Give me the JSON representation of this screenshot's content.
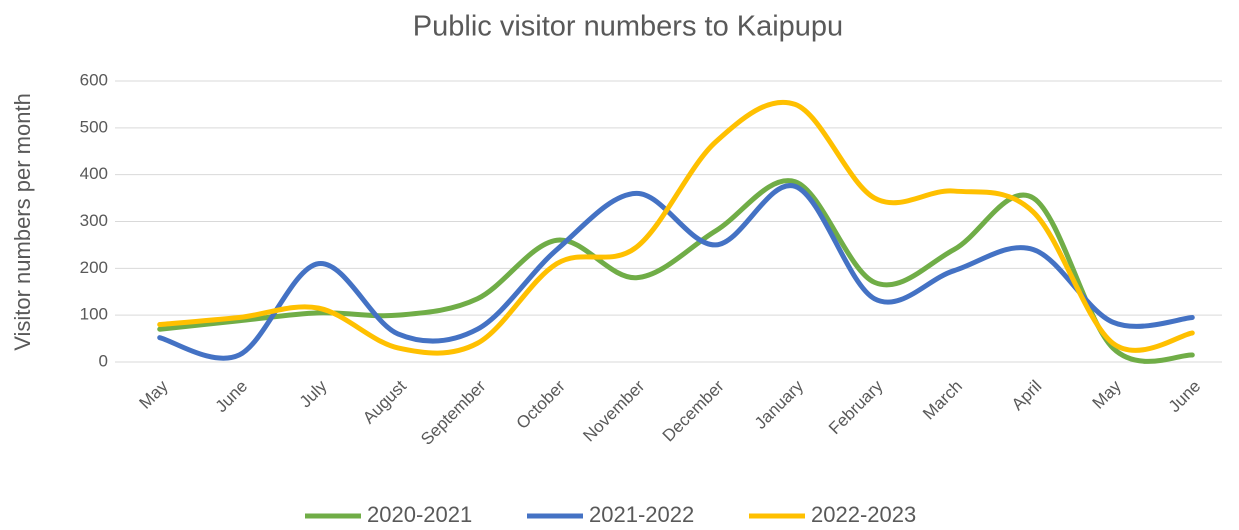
{
  "chart_data": {
    "type": "line",
    "title": "Public visitor numbers to Kaipupu",
    "y_label": "Visitor numbers per month",
    "categories": [
      "May",
      "June",
      "July",
      "August",
      "September",
      "October",
      "November",
      "December",
      "January",
      "February",
      "March",
      "April",
      "May",
      "June"
    ],
    "series": [
      {
        "name": "2020-2021",
        "color": "#70ad47",
        "values": [
          70,
          88,
          105,
          100,
          135,
          260,
          180,
          280,
          385,
          170,
          240,
          350,
          30,
          15
        ]
      },
      {
        "name": "2021-2022",
        "color": "#4472c4",
        "values": [
          52,
          15,
          210,
          60,
          70,
          240,
          360,
          250,
          375,
          135,
          195,
          240,
          85,
          95
        ]
      },
      {
        "name": "2022-2023",
        "color": "#ffc000",
        "values": [
          80,
          95,
          115,
          30,
          40,
          210,
          245,
          470,
          550,
          350,
          365,
          320,
          40,
          62
        ]
      }
    ],
    "ylim": [
      0,
      600
    ],
    "yticks": [
      0,
      100,
      200,
      300,
      400,
      500,
      600
    ],
    "grid": true,
    "smooth": true,
    "legend": "bottom"
  }
}
